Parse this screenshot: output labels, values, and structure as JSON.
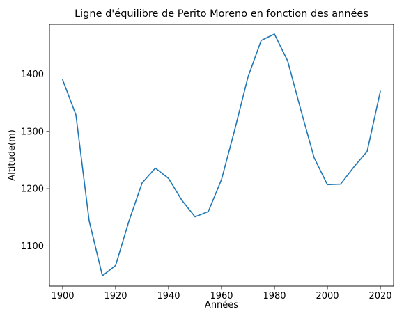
{
  "chart_data": {
    "type": "line",
    "title": "Ligne d'équilibre de Perito Moreno en fonction des années",
    "xlabel": "Années",
    "ylabel": "Altitude(m)",
    "xlim": [
      1895,
      2025
    ],
    "ylim": [
      1030,
      1487
    ],
    "xticks": [
      1900,
      1920,
      1940,
      1960,
      1980,
      2000,
      2020
    ],
    "yticks": [
      1100,
      1200,
      1300,
      1400
    ],
    "grid": false,
    "series": [
      {
        "color": "#1f77b4",
        "x": [
          1900,
          1905,
          1910,
          1915,
          1920,
          1925,
          1930,
          1935,
          1940,
          1945,
          1950,
          1955,
          1960,
          1965,
          1970,
          1975,
          1980,
          1985,
          1990,
          1995,
          2000,
          2005,
          2010,
          2015,
          2020
        ],
        "y": [
          1390,
          1329,
          1144,
          1048,
          1066,
          1143,
          1210,
          1236,
          1218,
          1180,
          1151,
          1160,
          1216,
          1303,
          1395,
          1459,
          1470,
          1423,
          1337,
          1254,
          1207,
          1208,
          1238,
          1265,
          1370
        ]
      }
    ]
  }
}
